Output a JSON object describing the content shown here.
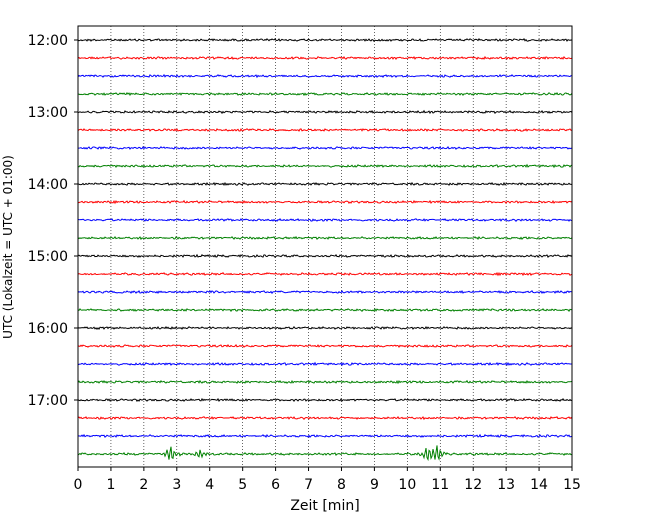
{
  "chart_data": {
    "type": "line",
    "subtype": "helicorder",
    "title": "",
    "xlabel": "Zeit  [min]",
    "ylabel": "UTC (Lokalzeit = UTC + 01:00)",
    "xlim": [
      0,
      15
    ],
    "x_ticks": [
      0,
      1,
      2,
      3,
      4,
      5,
      6,
      7,
      8,
      9,
      10,
      11,
      12,
      13,
      14,
      15
    ],
    "y_tick_labels": [
      "12:00",
      "13:00",
      "14:00",
      "15:00",
      "16:00",
      "17:00"
    ],
    "y_tick_rows": [
      0,
      4,
      8,
      12,
      16,
      20
    ],
    "grid": "vertical dotted",
    "trace_colors": [
      "#000000",
      "#ff0000",
      "#0000ff",
      "#008000"
    ],
    "rows": 24,
    "row_start_times": [
      "12:00",
      "12:15",
      "12:30",
      "12:45",
      "13:00",
      "13:15",
      "13:30",
      "13:45",
      "14:00",
      "14:15",
      "14:30",
      "14:45",
      "15:00",
      "15:15",
      "15:30",
      "15:45",
      "16:00",
      "16:15",
      "16:30",
      "16:45",
      "17:00",
      "17:15",
      "17:30",
      "17:45"
    ],
    "events": [
      {
        "row": 23,
        "x_min": 2.8,
        "amplitude": 9
      },
      {
        "row": 23,
        "x_min": 3.7,
        "amplitude": 5
      },
      {
        "row": 23,
        "x_min": 10.6,
        "amplitude": 8
      },
      {
        "row": 23,
        "x_min": 10.9,
        "amplitude": 9
      }
    ]
  }
}
